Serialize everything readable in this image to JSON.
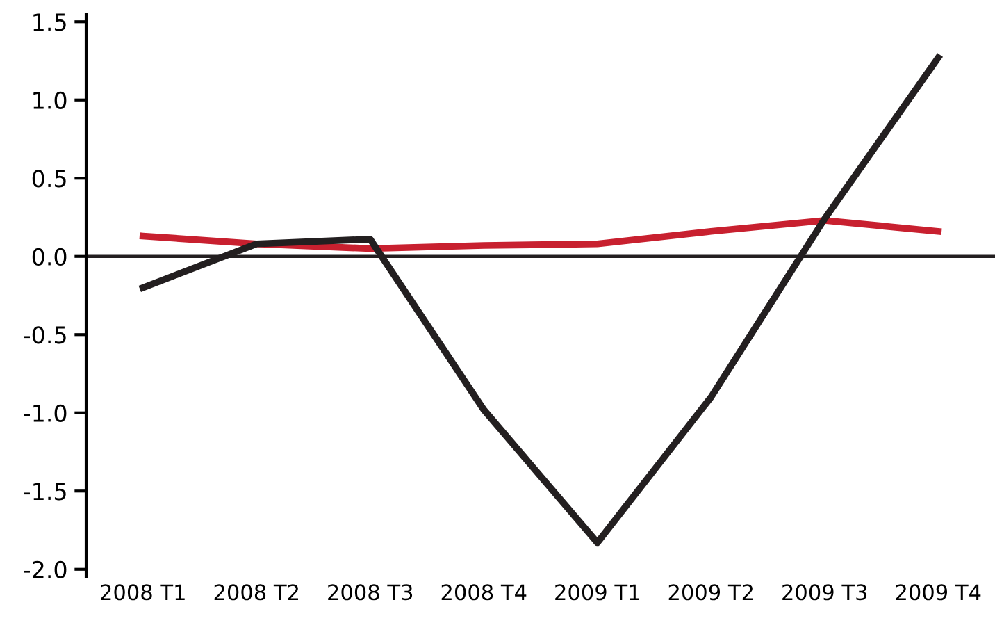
{
  "chart_data": {
    "type": "line",
    "categories": [
      "2008 T1",
      "2008 T2",
      "2008 T3",
      "2008 T4",
      "2009 T1",
      "2009 T2",
      "2009 T3",
      "2009 T4"
    ],
    "series": [
      {
        "color": "#c8202f",
        "values": [
          0.13,
          0.08,
          0.05,
          0.07,
          0.08,
          0.16,
          0.23,
          0.16
        ]
      },
      {
        "color": "#231f20",
        "values": [
          -0.2,
          0.08,
          0.11,
          -0.98,
          -1.83,
          -0.9,
          0.24,
          1.27
        ]
      }
    ],
    "ylim": [
      -2.05,
      1.55
    ],
    "yticks": [
      {
        "value": 1.5,
        "label": "1.5"
      },
      {
        "value": 1.0,
        "label": "1.0"
      },
      {
        "value": 0.5,
        "label": "0.5"
      },
      {
        "value": 0.0,
        "label": "0.0"
      },
      {
        "value": -0.5,
        "label": "-0.5"
      },
      {
        "value": -1.0,
        "label": "-1.0"
      },
      {
        "value": -1.5,
        "label": "-1.5"
      },
      {
        "value": -2.0,
        "label": "-2.0"
      }
    ],
    "ref_lines": [
      {
        "axis": "y",
        "value": 0,
        "color": "#231f20"
      }
    ],
    "grid": false,
    "legend": false,
    "marker": "none",
    "line_style": "solid"
  }
}
